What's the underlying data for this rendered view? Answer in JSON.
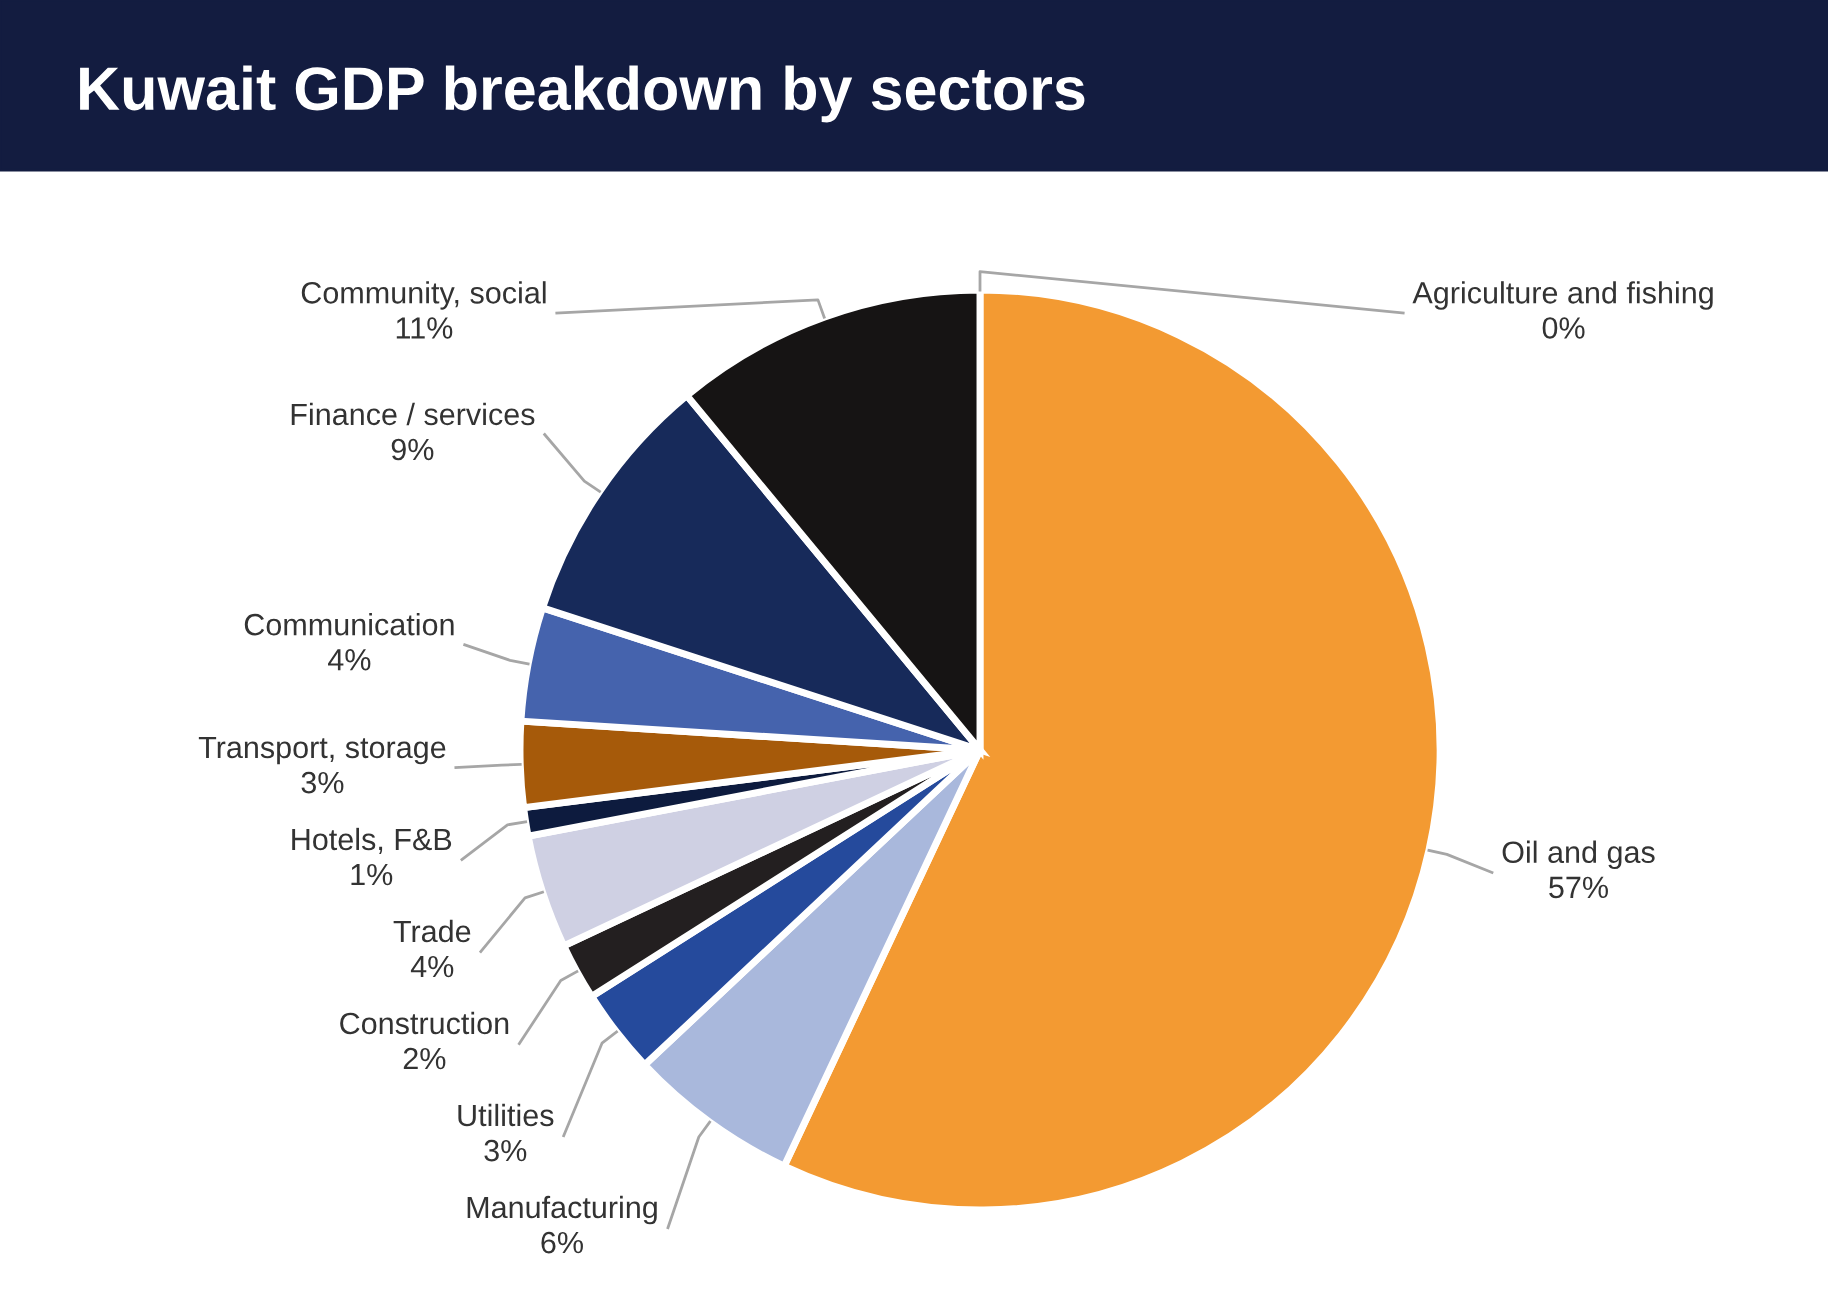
{
  "chart_data": {
    "type": "pie",
    "title": "Kuwait GDP breakdown by sectors",
    "categories": [
      "Agriculture and fishing",
      "Oil and gas",
      "Manufacturing",
      "Utilities",
      "Construction",
      "Trade",
      "Hotels, F&B",
      "Transport, storage",
      "Communication",
      "Finance / services",
      "Community, social"
    ],
    "values": [
      0,
      57,
      6,
      3,
      2,
      4,
      1,
      3,
      4,
      9,
      11
    ],
    "value_labels": [
      "0%",
      "57%",
      "6%",
      "3%",
      "2%",
      "4%",
      "1%",
      "3%",
      "4%",
      "9%",
      "11%"
    ],
    "colors": [
      "#1a1f3f",
      "#f39a32",
      "#a9b8dc",
      "#254a9c",
      "#231f20",
      "#cfd0e3",
      "#0d1b3e",
      "#a65a0a",
      "#4563ad",
      "#172a5a",
      "#161414"
    ],
    "legend": false
  }
}
